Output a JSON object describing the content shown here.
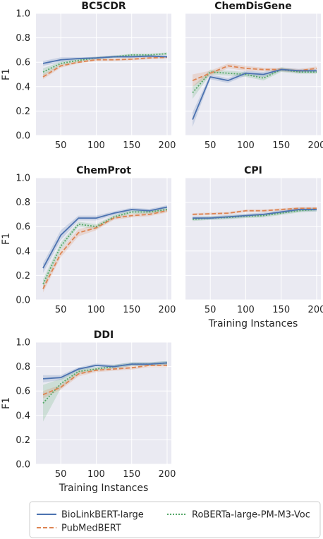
{
  "chart_data": {
    "type": "line",
    "shared": {
      "ylabel": "F1",
      "ylim": [
        0,
        1.0
      ],
      "yticks": [
        "0.0",
        "0.2",
        "0.4",
        "0.6",
        "0.8",
        "1.0"
      ],
      "xlim": [
        15,
        206
      ],
      "xticks": [
        "50",
        "100",
        "150",
        "200"
      ],
      "grid": true,
      "legend": {
        "entries": [
          {
            "name": "BioLinkBERT-large",
            "color": "#4c72b0",
            "style": "solid"
          },
          {
            "name": "RoBERTa-large-PM-M3-Voc",
            "color": "#55a868",
            "style": "dotted"
          },
          {
            "name": "PubMedBERT",
            "color": "#dd8452",
            "style": "dashed"
          }
        ],
        "placement": "bottom"
      }
    },
    "panels": [
      {
        "title": "BC5CDR",
        "xlabel": "",
        "x": [
          25,
          50,
          75,
          100,
          125,
          150,
          175,
          200
        ],
        "series": [
          {
            "name": "BioLinkBERT-large",
            "values": [
              0.59,
              0.62,
              0.63,
              0.635,
              0.645,
              0.645,
              0.65,
              0.645
            ],
            "lo": [
              0.57,
              0.6,
              0.62,
              0.625,
              0.635,
              0.635,
              0.64,
              0.635
            ],
            "hi": [
              0.61,
              0.64,
              0.64,
              0.645,
              0.655,
              0.655,
              0.66,
              0.655
            ]
          },
          {
            "name": "PubMedBERT",
            "values": [
              0.48,
              0.57,
              0.6,
              0.62,
              0.62,
              0.625,
              0.635,
              0.64
            ],
            "lo": [
              0.46,
              0.555,
              0.59,
              0.61,
              0.61,
              0.615,
              0.625,
              0.63
            ],
            "hi": [
              0.5,
              0.585,
              0.61,
              0.63,
              0.63,
              0.635,
              0.645,
              0.65
            ]
          },
          {
            "name": "RoBERTa-large-PM-M3-Voc",
            "values": [
              0.52,
              0.59,
              0.615,
              0.635,
              0.645,
              0.66,
              0.66,
              0.67
            ],
            "lo": [
              0.49,
              0.575,
              0.6,
              0.625,
              0.635,
              0.65,
              0.65,
              0.66
            ],
            "hi": [
              0.55,
              0.605,
              0.63,
              0.645,
              0.655,
              0.67,
              0.67,
              0.68
            ]
          }
        ]
      },
      {
        "title": "ChemDisGene",
        "xlabel": "",
        "x": [
          25,
          50,
          75,
          100,
          125,
          150,
          175,
          200
        ],
        "series": [
          {
            "name": "BioLinkBERT-large",
            "values": [
              0.13,
              0.48,
              0.45,
              0.51,
              0.5,
              0.54,
              0.53,
              0.53
            ],
            "lo": [
              0.07,
              0.46,
              0.43,
              0.49,
              0.48,
              0.525,
              0.515,
              0.515
            ],
            "hi": [
              0.19,
              0.5,
              0.47,
              0.53,
              0.52,
              0.555,
              0.545,
              0.545
            ]
          },
          {
            "name": "PubMedBERT",
            "values": [
              0.45,
              0.51,
              0.57,
              0.55,
              0.54,
              0.54,
              0.53,
              0.55
            ],
            "lo": [
              0.4,
              0.49,
              0.55,
              0.53,
              0.525,
              0.525,
              0.515,
              0.535
            ],
            "hi": [
              0.5,
              0.53,
              0.59,
              0.57,
              0.555,
              0.555,
              0.545,
              0.565
            ]
          },
          {
            "name": "RoBERTa-large-PM-M3-Voc",
            "values": [
              0.35,
              0.52,
              0.51,
              0.5,
              0.47,
              0.54,
              0.52,
              0.52
            ],
            "lo": [
              0.3,
              0.5,
              0.49,
              0.48,
              0.45,
              0.52,
              0.505,
              0.505
            ],
            "hi": [
              0.4,
              0.54,
              0.53,
              0.52,
              0.49,
              0.56,
              0.535,
              0.535
            ]
          }
        ]
      },
      {
        "title": "ChemProt",
        "xlabel": "",
        "x": [
          25,
          50,
          75,
          100,
          125,
          150,
          175,
          200
        ],
        "series": [
          {
            "name": "BioLinkBERT-large",
            "values": [
              0.26,
              0.53,
              0.67,
              0.67,
              0.71,
              0.74,
              0.73,
              0.76
            ],
            "lo": [
              0.22,
              0.49,
              0.65,
              0.65,
              0.695,
              0.725,
              0.715,
              0.745
            ],
            "hi": [
              0.3,
              0.57,
              0.69,
              0.69,
              0.725,
              0.755,
              0.745,
              0.775
            ]
          },
          {
            "name": "PubMedBERT",
            "values": [
              0.09,
              0.38,
              0.55,
              0.59,
              0.67,
              0.69,
              0.7,
              0.73
            ],
            "lo": [
              0.06,
              0.35,
              0.52,
              0.57,
              0.655,
              0.675,
              0.685,
              0.715
            ],
            "hi": [
              0.12,
              0.41,
              0.58,
              0.61,
              0.685,
              0.705,
              0.715,
              0.745
            ]
          },
          {
            "name": "RoBERTa-large-PM-M3-Voc",
            "values": [
              0.13,
              0.44,
              0.62,
              0.6,
              0.68,
              0.72,
              0.72,
              0.74
            ],
            "lo": [
              0.09,
              0.41,
              0.6,
              0.58,
              0.665,
              0.705,
              0.705,
              0.725
            ],
            "hi": [
              0.17,
              0.47,
              0.64,
              0.62,
              0.695,
              0.735,
              0.735,
              0.755
            ]
          }
        ]
      },
      {
        "title": "CPI",
        "xlabel": "Training Instances",
        "x": [
          25,
          50,
          75,
          100,
          125,
          150,
          175,
          200
        ],
        "series": [
          {
            "name": "BioLinkBERT-large",
            "values": [
              0.67,
              0.67,
              0.68,
              0.69,
              0.7,
              0.72,
              0.74,
              0.74
            ],
            "lo": [
              0.655,
              0.655,
              0.665,
              0.675,
              0.685,
              0.705,
              0.725,
              0.725
            ],
            "hi": [
              0.685,
              0.685,
              0.695,
              0.705,
              0.715,
              0.735,
              0.755,
              0.755
            ]
          },
          {
            "name": "PubMedBERT",
            "values": [
              0.7,
              0.705,
              0.71,
              0.73,
              0.73,
              0.74,
              0.75,
              0.75
            ],
            "lo": [
              0.69,
              0.695,
              0.7,
              0.72,
              0.72,
              0.73,
              0.74,
              0.74
            ],
            "hi": [
              0.71,
              0.715,
              0.72,
              0.74,
              0.74,
              0.75,
              0.76,
              0.76
            ]
          },
          {
            "name": "RoBERTa-large-PM-M3-Voc",
            "values": [
              0.66,
              0.67,
              0.675,
              0.685,
              0.69,
              0.71,
              0.73,
              0.74
            ],
            "lo": [
              0.645,
              0.655,
              0.66,
              0.67,
              0.675,
              0.695,
              0.715,
              0.725
            ],
            "hi": [
              0.675,
              0.685,
              0.69,
              0.7,
              0.705,
              0.725,
              0.745,
              0.755
            ]
          }
        ]
      },
      {
        "title": "DDI",
        "xlabel": "Training Instances",
        "x": [
          25,
          50,
          75,
          100,
          125,
          150,
          175,
          200
        ],
        "series": [
          {
            "name": "BioLinkBERT-large",
            "values": [
              0.7,
              0.71,
              0.78,
              0.81,
              0.8,
              0.82,
              0.82,
              0.83
            ],
            "lo": [
              0.67,
              0.69,
              0.765,
              0.795,
              0.785,
              0.805,
              0.805,
              0.815
            ],
            "hi": [
              0.73,
              0.73,
              0.795,
              0.825,
              0.815,
              0.835,
              0.835,
              0.845
            ]
          },
          {
            "name": "PubMedBERT",
            "values": [
              0.57,
              0.63,
              0.74,
              0.77,
              0.78,
              0.79,
              0.81,
              0.81
            ],
            "lo": [
              0.54,
              0.61,
              0.72,
              0.755,
              0.765,
              0.775,
              0.795,
              0.795
            ],
            "hi": [
              0.6,
              0.65,
              0.76,
              0.785,
              0.795,
              0.805,
              0.825,
              0.825
            ]
          },
          {
            "name": "RoBERTa-large-PM-M3-Voc",
            "values": [
              0.5,
              0.66,
              0.76,
              0.78,
              0.8,
              0.82,
              0.82,
              0.83
            ],
            "lo": [
              0.35,
              0.62,
              0.74,
              0.765,
              0.785,
              0.805,
              0.805,
              0.815
            ],
            "hi": [
              0.65,
              0.7,
              0.78,
              0.795,
              0.815,
              0.835,
              0.835,
              0.845
            ]
          }
        ]
      }
    ]
  }
}
